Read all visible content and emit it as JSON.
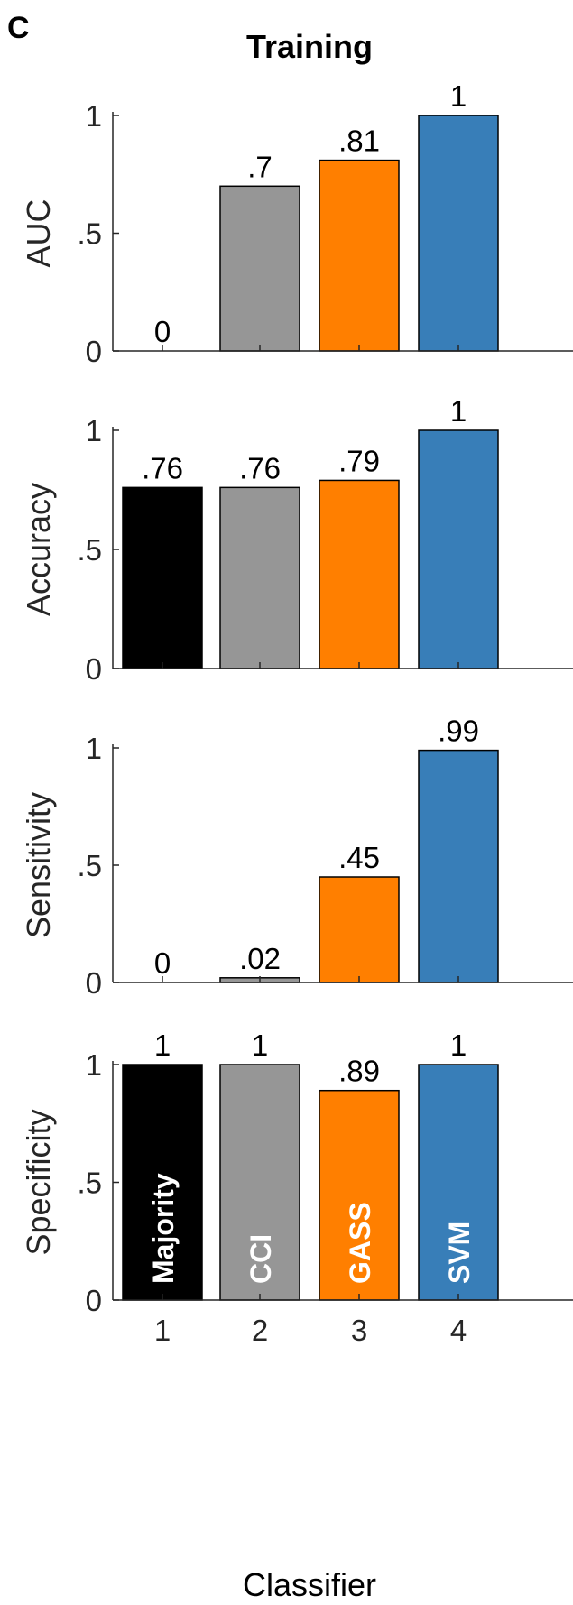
{
  "panel_letter": "C",
  "chart_data": {
    "type": "bar",
    "title": "Training",
    "xlabel": "Classifier",
    "x_ticks": [
      "1",
      "2",
      "3",
      "4"
    ],
    "y_ticks": [
      "0",
      ".5",
      "1"
    ],
    "ylim": [
      0,
      1
    ],
    "categories": [
      "Majority",
      "CCI",
      "GASS",
      "SVM"
    ],
    "colors": [
      "#000000",
      "#969696",
      "#FF7F00",
      "#387EB8"
    ],
    "category_label_color": "#ffffff",
    "panels": [
      {
        "ylabel": "AUC",
        "values": [
          0,
          0.7,
          0.81,
          1
        ],
        "labels": [
          "0",
          ".7",
          ".81",
          "1"
        ]
      },
      {
        "ylabel": "Accuracy",
        "values": [
          0.76,
          0.76,
          0.79,
          1
        ],
        "labels": [
          ".76",
          ".76",
          ".79",
          "1"
        ]
      },
      {
        "ylabel": "Sensitivity",
        "values": [
          0,
          0.02,
          0.45,
          0.99
        ],
        "labels": [
          "0",
          ".02",
          ".45",
          ".99"
        ]
      },
      {
        "ylabel": "Specificity",
        "values": [
          1,
          1,
          0.89,
          1
        ],
        "labels": [
          "1",
          "1",
          ".89",
          "1"
        ]
      }
    ]
  }
}
